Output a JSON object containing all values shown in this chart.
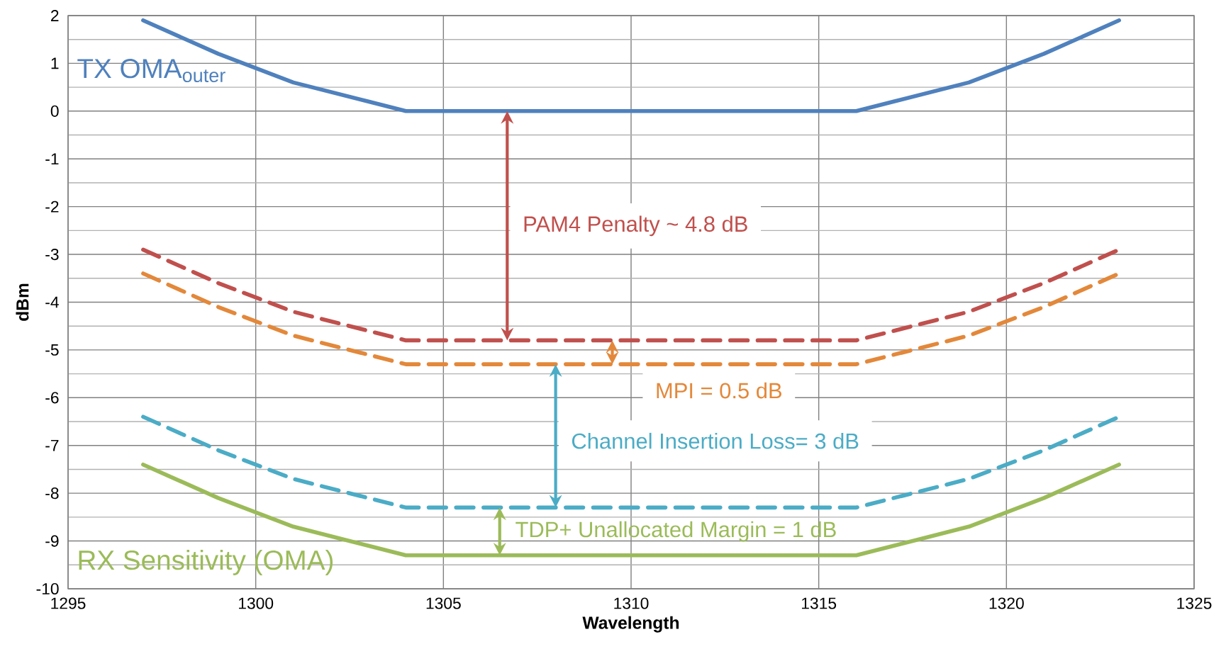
{
  "chart_data": {
    "type": "line",
    "xlabel": "Wavelength",
    "ylabel": "dBm",
    "xlim": [
      1295,
      1325
    ],
    "xticks": [
      1295,
      1300,
      1305,
      1310,
      1315,
      1320,
      1325
    ],
    "ylim": [
      -10,
      2
    ],
    "yticks": [
      -10,
      -9,
      -8,
      -7,
      -6,
      -5,
      -4,
      -3,
      -2,
      -1,
      0,
      1,
      2
    ],
    "grid": true,
    "x": [
      1297,
      1299,
      1301,
      1303,
      1304,
      1316,
      1317,
      1319,
      1321,
      1323
    ],
    "series": [
      {
        "name": "TX OMA$_{outer}$",
        "color": "#4f81bd",
        "line_style": "solid",
        "values": [
          1.9,
          1.2,
          0.6,
          0.2,
          0,
          0,
          0.2,
          0.6,
          1.2,
          1.9
        ]
      },
      {
        "color": "#c0504d",
        "line_style": "dashed",
        "values": [
          -2.9,
          -3.6,
          -4.2,
          -4.6,
          -4.8,
          -4.8,
          -4.6,
          -4.2,
          -3.6,
          -2.9
        ]
      },
      {
        "color": "#e3883a",
        "line_style": "dashed",
        "values": [
          -3.4,
          -4.1,
          -4.7,
          -5.1,
          -5.3,
          -5.3,
          -5.1,
          -4.7,
          -4.1,
          -3.4
        ]
      },
      {
        "color": "#4bacc6",
        "line_style": "dashed",
        "values": [
          -6.4,
          -7.1,
          -7.7,
          -8.1,
          -8.3,
          -8.3,
          -8.1,
          -7.7,
          -7.1,
          -6.4
        ]
      },
      {
        "name": "RX Sensitivity (OMA)",
        "color": "#9bbb59",
        "line_style": "solid",
        "values": [
          -7.4,
          -8.1,
          -8.7,
          -9.1,
          -9.3,
          -9.3,
          -9.1,
          -8.7,
          -8.1,
          -7.4
        ]
      }
    ],
    "annotations": [
      "PAM4 Penalty ~ 4.8 dB",
      {
        "text": "MPI = 0.5 dB",
        "x": 1309.5,
        "y": -4.8
      },
      "Channel Insertion Loss= 3 dB",
      {
        "text": "TDP+ Unallocated Margin = 1 dB",
        "x": 1306.5,
        "y": -8.3
      }
    ]
  }
}
